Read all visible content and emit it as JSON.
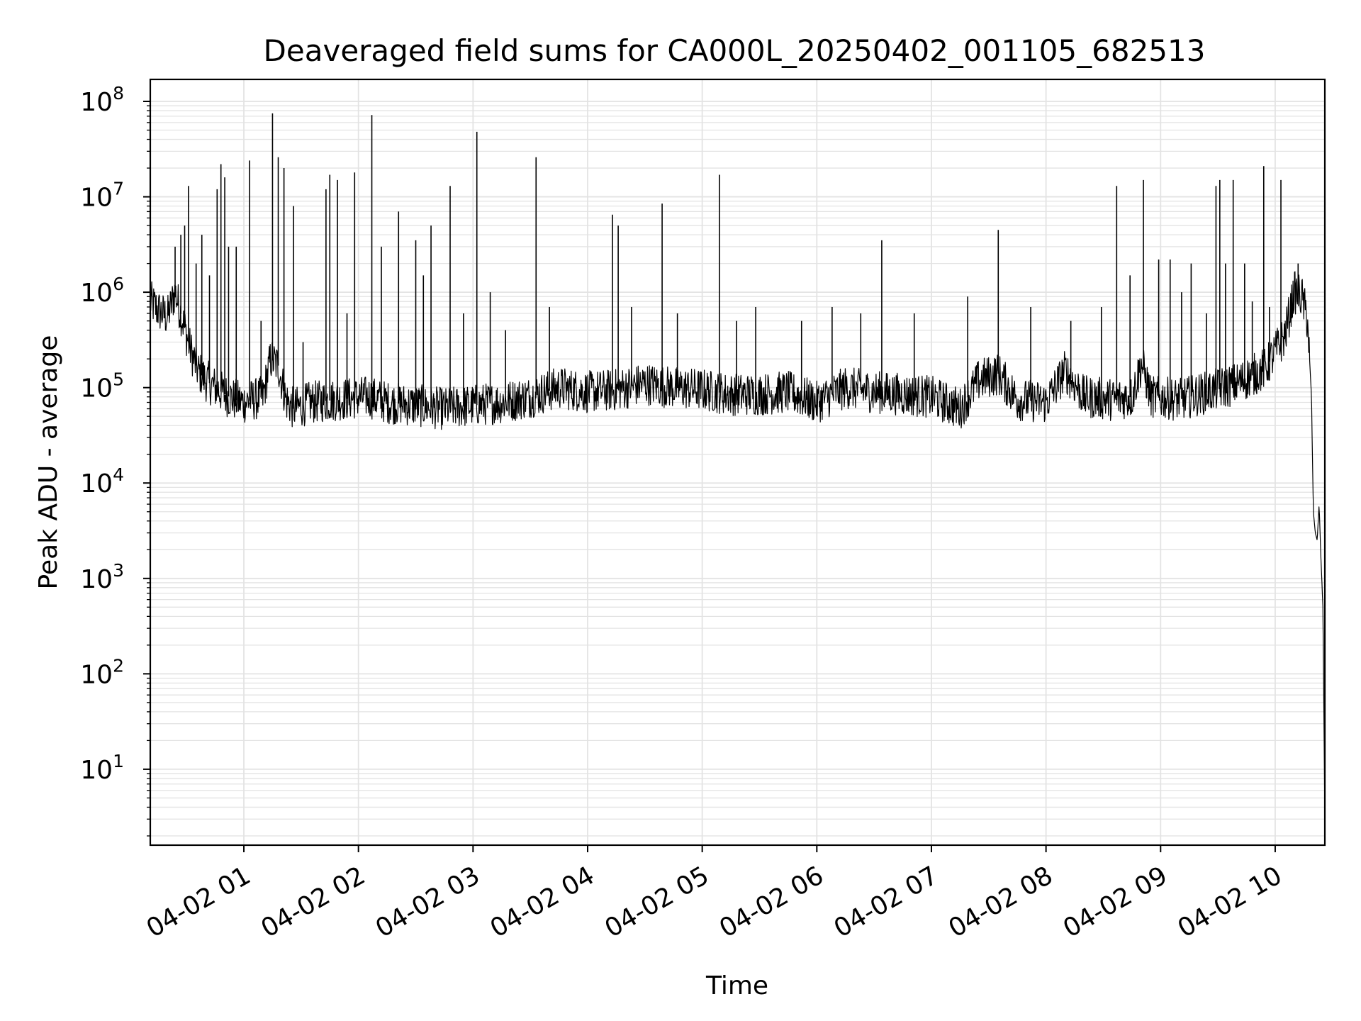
{
  "chart_data": {
    "type": "line",
    "title": "Deaveraged field sums for CA000L_20250402_001105_682513",
    "xlabel": "Time",
    "ylabel": "Peak ADU - average",
    "yscale": "log",
    "ylim": [
      1.6,
      170000000
    ],
    "xlim": [
      "04-02 00:11",
      "04-02 10:26"
    ],
    "grid": true,
    "x_ticks": [
      "04-02 01",
      "04-02 02",
      "04-02 03",
      "04-02 04",
      "04-02 05",
      "04-02 06",
      "04-02 07",
      "04-02 08",
      "04-02 09",
      "04-02 10"
    ],
    "y_ticks": [
      {
        "base": "10",
        "exp": "1",
        "value": 10
      },
      {
        "base": "10",
        "exp": "2",
        "value": 100
      },
      {
        "base": "10",
        "exp": "3",
        "value": 1000
      },
      {
        "base": "10",
        "exp": "4",
        "value": 10000
      },
      {
        "base": "10",
        "exp": "5",
        "value": 100000
      },
      {
        "base": "10",
        "exp": "6",
        "value": 1000000
      },
      {
        "base": "10",
        "exp": "7",
        "value": 10000000
      },
      {
        "base": "10",
        "exp": "8",
        "value": 100000000
      }
    ],
    "series": [
      {
        "color": "#000000",
        "baseline": [
          [
            "04-02 00:11",
            800000
          ],
          [
            "04-02 00:15",
            650000
          ],
          [
            "04-02 00:20",
            550000
          ],
          [
            "04-02 00:24",
            1000000
          ],
          [
            "04-02 00:28",
            500000
          ],
          [
            "04-02 00:32",
            250000
          ],
          [
            "04-02 00:36",
            150000
          ],
          [
            "04-02 00:40",
            120000
          ],
          [
            "04-02 00:45",
            100000
          ],
          [
            "04-02 00:50",
            85000
          ],
          [
            "04-02 00:55",
            75000
          ],
          [
            "04-02 01:00",
            70000
          ],
          [
            "04-02 01:10",
            80000
          ],
          [
            "04-02 01:14",
            200000
          ],
          [
            "04-02 01:18",
            170000
          ],
          [
            "04-02 01:22",
            75000
          ],
          [
            "04-02 01:26",
            60000
          ],
          [
            "04-02 01:35",
            70000
          ],
          [
            "04-02 01:50",
            75000
          ],
          [
            "04-02 02:05",
            80000
          ],
          [
            "04-02 02:15",
            70000
          ],
          [
            "04-02 02:30",
            65000
          ],
          [
            "04-02 02:45",
            60000
          ],
          [
            "04-02 03:00",
            65000
          ],
          [
            "04-02 03:15",
            70000
          ],
          [
            "04-02 03:30",
            80000
          ],
          [
            "04-02 03:45",
            100000
          ],
          [
            "04-02 04:00",
            90000
          ],
          [
            "04-02 04:15",
            95000
          ],
          [
            "04-02 04:30",
            110000
          ],
          [
            "04-02 04:45",
            100000
          ],
          [
            "04-02 05:00",
            95000
          ],
          [
            "04-02 05:15",
            85000
          ],
          [
            "04-02 05:30",
            85000
          ],
          [
            "04-02 05:45",
            90000
          ],
          [
            "04-02 06:00",
            70000
          ],
          [
            "04-02 06:15",
            100000
          ],
          [
            "04-02 06:30",
            90000
          ],
          [
            "04-02 06:45",
            85000
          ],
          [
            "04-02 07:00",
            80000
          ],
          [
            "04-02 07:15",
            60000
          ],
          [
            "04-02 07:25",
            120000
          ],
          [
            "04-02 07:35",
            140000
          ],
          [
            "04-02 07:45",
            75000
          ],
          [
            "04-02 08:00",
            70000
          ],
          [
            "04-02 08:10",
            150000
          ],
          [
            "04-02 08:20",
            80000
          ],
          [
            "04-02 08:35",
            75000
          ],
          [
            "04-02 08:45",
            80000
          ],
          [
            "04-02 08:50",
            180000
          ],
          [
            "04-02 08:55",
            80000
          ],
          [
            "04-02 09:10",
            75000
          ],
          [
            "04-02 09:25",
            90000
          ],
          [
            "04-02 09:40",
            110000
          ],
          [
            "04-02 09:55",
            160000
          ],
          [
            "04-02 10:05",
            350000
          ],
          [
            "04-02 10:10",
            1000000
          ],
          [
            "04-02 10:14",
            900000
          ],
          [
            "04-02 10:17",
            500000
          ],
          [
            "04-02 10:19",
            80000
          ],
          [
            "04-02 10:20",
            5000
          ],
          [
            "04-02 10:21",
            3000
          ],
          [
            "04-02 10:22",
            2500
          ],
          [
            "04-02 10:23",
            6000
          ],
          [
            "04-02 10:24",
            1500
          ],
          [
            "04-02 10:25",
            500
          ],
          [
            "04-02 10:26",
            3
          ]
        ],
        "spikes": [
          [
            "04-02 00:24",
            3000000
          ],
          [
            "04-02 00:27",
            4000000
          ],
          [
            "04-02 00:29",
            5000000
          ],
          [
            "04-02 00:31",
            13000000
          ],
          [
            "04-02 00:35",
            2000000
          ],
          [
            "04-02 00:38",
            4000000
          ],
          [
            "04-02 00:42",
            1500000
          ],
          [
            "04-02 00:46",
            12000000
          ],
          [
            "04-02 00:48",
            22000000
          ],
          [
            "04-02 00:50",
            16000000
          ],
          [
            "04-02 00:52",
            3000000
          ],
          [
            "04-02 00:56",
            3000000
          ],
          [
            "04-02 01:03",
            24000000
          ],
          [
            "04-02 01:09",
            500000
          ],
          [
            "04-02 01:15",
            75000000
          ],
          [
            "04-02 01:18",
            26000000
          ],
          [
            "04-02 01:21",
            20000000
          ],
          [
            "04-02 01:26",
            8000000
          ],
          [
            "04-02 01:31",
            300000
          ],
          [
            "04-02 01:43",
            12000000
          ],
          [
            "04-02 01:45",
            17000000
          ],
          [
            "04-02 01:49",
            15000000
          ],
          [
            "04-02 01:54",
            600000
          ],
          [
            "04-02 01:58",
            18000000
          ],
          [
            "04-02 02:07",
            72000000
          ],
          [
            "04-02 02:12",
            3000000
          ],
          [
            "04-02 02:21",
            7000000
          ],
          [
            "04-02 02:30",
            3500000
          ],
          [
            "04-02 02:34",
            1500000
          ],
          [
            "04-02 02:38",
            5000000
          ],
          [
            "04-02 02:48",
            13000000
          ],
          [
            "04-02 02:55",
            600000
          ],
          [
            "04-02 03:02",
            48000000
          ],
          [
            "04-02 03:09",
            1000000
          ],
          [
            "04-02 03:17",
            400000
          ],
          [
            "04-02 03:33",
            26000000
          ],
          [
            "04-02 03:40",
            700000
          ],
          [
            "04-02 04:13",
            6500000
          ],
          [
            "04-02 04:16",
            5000000
          ],
          [
            "04-02 04:23",
            700000
          ],
          [
            "04-02 04:39",
            8500000
          ],
          [
            "04-02 04:47",
            600000
          ],
          [
            "04-02 05:09",
            17000000
          ],
          [
            "04-02 05:18",
            500000
          ],
          [
            "04-02 05:28",
            700000
          ],
          [
            "04-02 05:52",
            500000
          ],
          [
            "04-02 06:08",
            700000
          ],
          [
            "04-02 06:23",
            600000
          ],
          [
            "04-02 06:34",
            3500000
          ],
          [
            "04-02 06:51",
            600000
          ],
          [
            "04-02 07:19",
            900000
          ],
          [
            "04-02 07:35",
            4500000
          ],
          [
            "04-02 07:52",
            700000
          ],
          [
            "04-02 08:13",
            500000
          ],
          [
            "04-02 08:29",
            700000
          ],
          [
            "04-02 08:37",
            13000000
          ],
          [
            "04-02 08:44",
            1500000
          ],
          [
            "04-02 08:51",
            15000000
          ],
          [
            "04-02 08:59",
            2200000
          ],
          [
            "04-02 09:05",
            2200000
          ],
          [
            "04-02 09:11",
            1000000
          ],
          [
            "04-02 09:16",
            2000000
          ],
          [
            "04-02 09:24",
            600000
          ],
          [
            "04-02 09:29",
            13000000
          ],
          [
            "04-02 09:31",
            15000000
          ],
          [
            "04-02 09:34",
            2000000
          ],
          [
            "04-02 09:38",
            15000000
          ],
          [
            "04-02 09:44",
            2000000
          ],
          [
            "04-02 09:48",
            800000
          ],
          [
            "04-02 09:54",
            21000000
          ],
          [
            "04-02 09:57",
            700000
          ],
          [
            "04-02 10:03",
            15000000
          ],
          [
            "04-02 10:12",
            2000000
          ]
        ]
      }
    ]
  }
}
